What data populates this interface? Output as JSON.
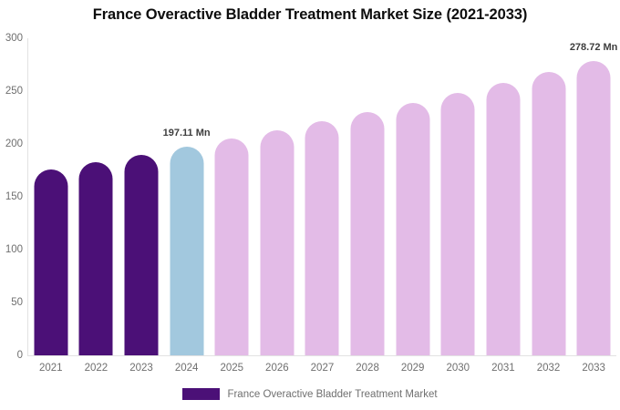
{
  "chart_data": {
    "type": "bar",
    "title": "France Overactive Bladder Treatment Market Size (2021-2033)",
    "categories": [
      "2021",
      "2022",
      "2023",
      "2024",
      "2025",
      "2026",
      "2027",
      "2028",
      "2029",
      "2030",
      "2031",
      "2032",
      "2033"
    ],
    "values": [
      175.6,
      182.5,
      189.7,
      197.11,
      204.8,
      212.9,
      221.2,
      229.9,
      238.9,
      248.3,
      258.0,
      268.1,
      278.72
    ],
    "unit": "Mn",
    "data_labels": [
      null,
      null,
      null,
      "197.11 Mn",
      null,
      null,
      null,
      null,
      null,
      null,
      null,
      null,
      "278.72 Mn"
    ],
    "bar_colors": [
      "#4B1077",
      "#4B1077",
      "#4B1077",
      "#A2C8DE",
      "#E3BBE7",
      "#E3BBE7",
      "#E3BBE7",
      "#E3BBE7",
      "#E3BBE7",
      "#E3BBE7",
      "#E3BBE7",
      "#E3BBE7",
      "#E3BBE7"
    ],
    "xlabel": "",
    "ylabel": "",
    "ylim": [
      0,
      300
    ],
    "yticks": [
      0,
      50,
      100,
      150,
      200,
      250,
      300
    ],
    "grid": false,
    "legend": {
      "position": "bottom",
      "label": "France Overactive Bladder Treatment Market",
      "swatch_color": "#4B1077"
    },
    "colors": {
      "historical_bar": "#4B1077",
      "current_year_bar": "#A2C8DE",
      "forecast_bar": "#E3BBE7",
      "axis_line": "#e2e2e2",
      "tick_text": "#6f6f6f",
      "title_text": "#0d0d0d",
      "data_label_text": "#3d3d3d"
    }
  }
}
